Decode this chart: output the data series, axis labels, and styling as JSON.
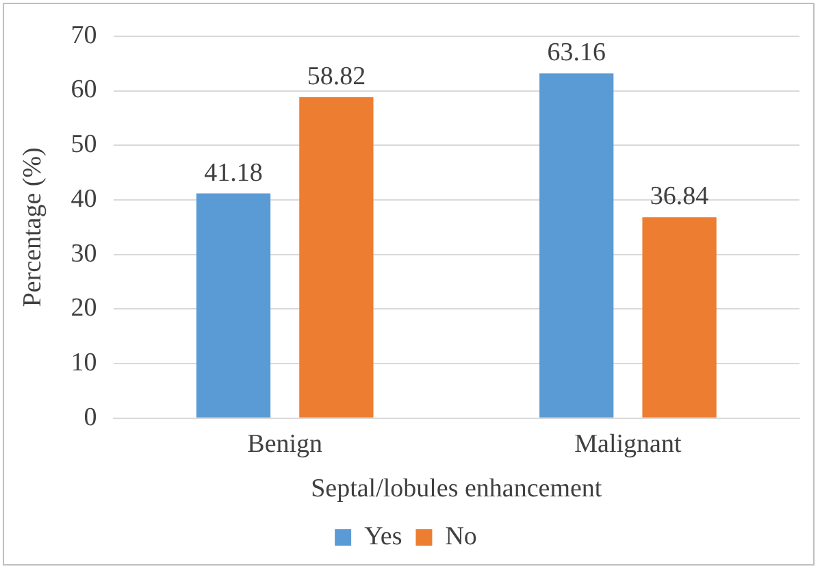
{
  "chart_data": {
    "type": "bar",
    "xlabel": "Septal/lobules enhancement",
    "ylabel": "Percentage (%)",
    "categories": [
      "Benign",
      "Malignant"
    ],
    "series": [
      {
        "name": "Yes",
        "color": "#5b9bd5",
        "values": [
          41.18,
          63.16
        ]
      },
      {
        "name": "No",
        "color": "#ed7d31",
        "values": [
          58.82,
          36.84
        ]
      }
    ],
    "ylim": [
      0,
      70
    ],
    "yticks": [
      0,
      10,
      20,
      30,
      40,
      50,
      60,
      70
    ],
    "grid": "y",
    "legend": "bottom",
    "data_labels": true
  }
}
